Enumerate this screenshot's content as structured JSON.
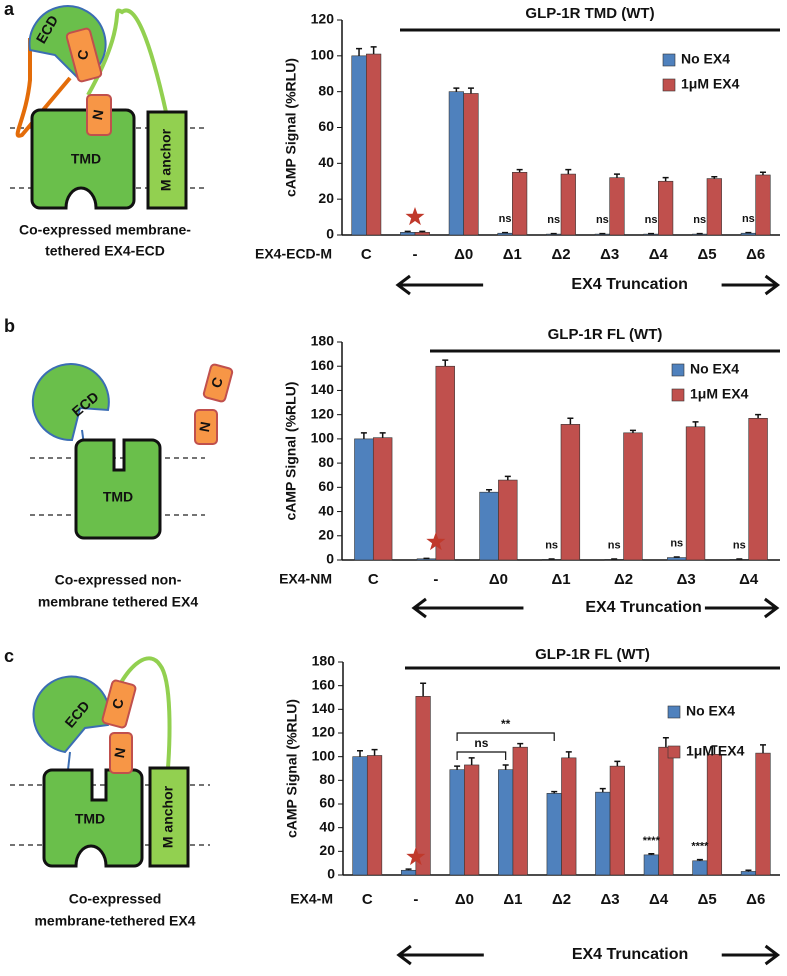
{
  "panels": [
    {
      "label": "a",
      "diagram": {
        "labels": [
          "ECD",
          "C",
          "N",
          "TMD",
          "M anchor"
        ],
        "caption": [
          "Co-expressed membrane-",
          "tethered EX4-ECD"
        ]
      }
    },
    {
      "label": "b",
      "diagram": {
        "labels": [
          "ECD",
          "C",
          "N",
          "TMD"
        ],
        "caption": [
          "Co-expressed non-",
          "membrane tethered EX4"
        ]
      }
    },
    {
      "label": "c",
      "diagram": {
        "labels": [
          "ECD",
          "C",
          "N",
          "TMD",
          "M anchor"
        ],
        "caption": [
          "Co-expressed",
          "membrane-tethered EX4"
        ]
      }
    }
  ],
  "chart_data": [
    {
      "type": "bar",
      "title": "GLP-1R TMD (WT)",
      "ylabel": "cAMP Signal (%RLU)",
      "xlabel": "EX4-ECD-M",
      "truncation_label": "EX4  Truncation",
      "categories": [
        "C",
        "-",
        "Δ0",
        "Δ1",
        "Δ2",
        "Δ3",
        "Δ4",
        "Δ5",
        "Δ6"
      ],
      "series": [
        {
          "name": "No EX4",
          "color": "#4f81bd",
          "values": [
            100,
            1.5,
            80,
            1,
            0.5,
            0.5,
            0.5,
            0.5,
            1
          ],
          "errors": [
            4,
            0.5,
            2,
            0.3,
            0.3,
            0.3,
            0.3,
            0.3,
            0.3
          ]
        },
        {
          "name": "1μM EX4",
          "color": "#c0504d",
          "values": [
            101,
            1.5,
            79,
            35,
            34,
            32,
            30,
            31.5,
            33.5
          ],
          "errors": [
            4,
            0.5,
            3,
            1.5,
            2.5,
            2,
            2,
            1,
            1.5
          ]
        }
      ],
      "annotations": [
        {
          "text": "ns",
          "at": "Δ1"
        },
        {
          "text": "ns",
          "at": "Δ2"
        },
        {
          "text": "ns",
          "at": "Δ3"
        },
        {
          "text": "ns",
          "at": "Δ4"
        },
        {
          "text": "ns",
          "at": "Δ5"
        },
        {
          "text": "ns",
          "at": "Δ6"
        }
      ],
      "ylim": [
        0,
        120
      ],
      "yticks": [
        0,
        20,
        40,
        60,
        80,
        100,
        120
      ],
      "legend": "upper right"
    },
    {
      "type": "bar",
      "title": "GLP-1R FL (WT)",
      "ylabel": "cAMP Signal (%RLU)",
      "xlabel": "EX4-NM",
      "truncation_label": "EX4  Truncation",
      "categories": [
        "C",
        "-",
        "Δ0",
        "Δ1",
        "Δ2",
        "Δ3",
        "Δ4"
      ],
      "series": [
        {
          "name": "No EX4",
          "color": "#4f81bd",
          "values": [
            100,
            1,
            56,
            0.5,
            0.5,
            2,
            0.5
          ],
          "errors": [
            5,
            0.3,
            2,
            0.3,
            0.3,
            0.5,
            0.3
          ]
        },
        {
          "name": "1μM EX4",
          "color": "#c0504d",
          "values": [
            101,
            160,
            66,
            112,
            105,
            110,
            117
          ],
          "errors": [
            4,
            5,
            3,
            5,
            2,
            4,
            3
          ]
        }
      ],
      "annotations": [
        {
          "text": "ns",
          "at": "Δ1"
        },
        {
          "text": "ns",
          "at": "Δ2"
        },
        {
          "text": "ns",
          "at": "Δ3"
        },
        {
          "text": "ns",
          "at": "Δ4"
        }
      ],
      "ylim": [
        0,
        180
      ],
      "yticks": [
        0,
        20,
        40,
        60,
        80,
        100,
        120,
        140,
        160,
        180
      ],
      "legend": "upper right"
    },
    {
      "type": "bar",
      "title": "GLP-1R FL (WT)",
      "ylabel": "cAMP Signal (%RLU)",
      "xlabel": "EX4-M",
      "truncation_label": "EX4  Truncation",
      "categories": [
        "C",
        "-",
        "Δ0",
        "Δ1",
        "Δ2",
        "Δ3",
        "Δ4",
        "Δ5",
        "Δ6"
      ],
      "series": [
        {
          "name": "No EX4",
          "color": "#4f81bd",
          "values": [
            100,
            4,
            89,
            89,
            69,
            70,
            17,
            12,
            3
          ],
          "errors": [
            5,
            1,
            3,
            4,
            1.5,
            3,
            1,
            1,
            1
          ]
        },
        {
          "name": "1μM EX4",
          "color": "#c0504d",
          "values": [
            101,
            151,
            93,
            108,
            99,
            92,
            108,
            102,
            103
          ],
          "errors": [
            5,
            11,
            6,
            3,
            5,
            4,
            8,
            7,
            7
          ]
        }
      ],
      "annotations": [
        {
          "text": "****",
          "at": "Δ4"
        },
        {
          "text": "****",
          "at": "Δ5"
        }
      ],
      "brackets": [
        {
          "text": "ns",
          "from": "Δ0",
          "to": "Δ1"
        },
        {
          "text": "**",
          "from": "Δ0",
          "to": "Δ2"
        }
      ],
      "ylim": [
        0,
        180
      ],
      "yticks": [
        0,
        20,
        40,
        60,
        80,
        100,
        120,
        140,
        160,
        180
      ],
      "legend": "upper right"
    }
  ]
}
